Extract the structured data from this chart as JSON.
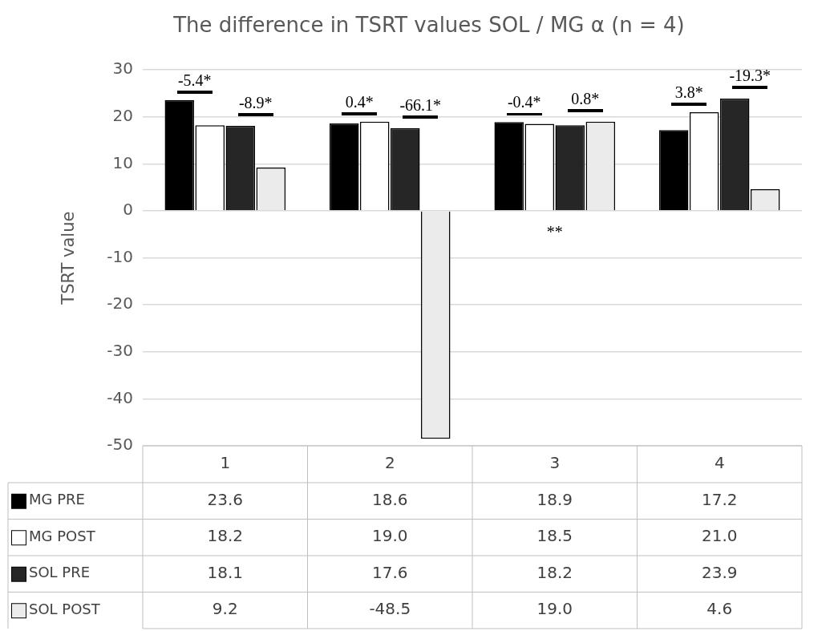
{
  "chart_data": {
    "type": "bar",
    "title": "The difference in TSRT values SOL / MG α (n = 4)",
    "ylabel": "TSRT value",
    "categories": [
      "1",
      "2",
      "3",
      "4"
    ],
    "series": [
      {
        "name": "MG PRE",
        "color": "#000000",
        "values": [
          23.6,
          18.6,
          18.9,
          17.2
        ],
        "value_labels": [
          "23.6",
          "18.6",
          "18.9",
          "17.2"
        ]
      },
      {
        "name": "MG POST",
        "color": "#ffffff",
        "values": [
          18.2,
          19.0,
          18.5,
          21.0
        ],
        "value_labels": [
          "18.2",
          "19.0",
          "18.5",
          "21.0"
        ]
      },
      {
        "name": "SOL PRE",
        "color": "#262626",
        "values": [
          18.1,
          17.6,
          18.2,
          23.9
        ],
        "value_labels": [
          "18.1",
          "17.6",
          "18.2",
          "23.9"
        ]
      },
      {
        "name": "SOL POST",
        "color": "#ebebeb",
        "values": [
          9.2,
          -48.5,
          19.0,
          4.6
        ],
        "value_labels": [
          "9.2",
          "-48.5",
          "19.0",
          "4.6"
        ]
      }
    ],
    "ylim": [
      -50,
      30
    ],
    "yticks": [
      -50,
      -40,
      -30,
      -20,
      -10,
      0,
      10,
      20,
      30
    ],
    "grid": "y",
    "legend": "bottom left",
    "annotations": [
      "-5.4*",
      "-8.9*",
      "0.4*",
      "-66.1*",
      "-0.4*",
      "0.8*",
      "3.8*",
      "-19.3*",
      "**"
    ]
  }
}
